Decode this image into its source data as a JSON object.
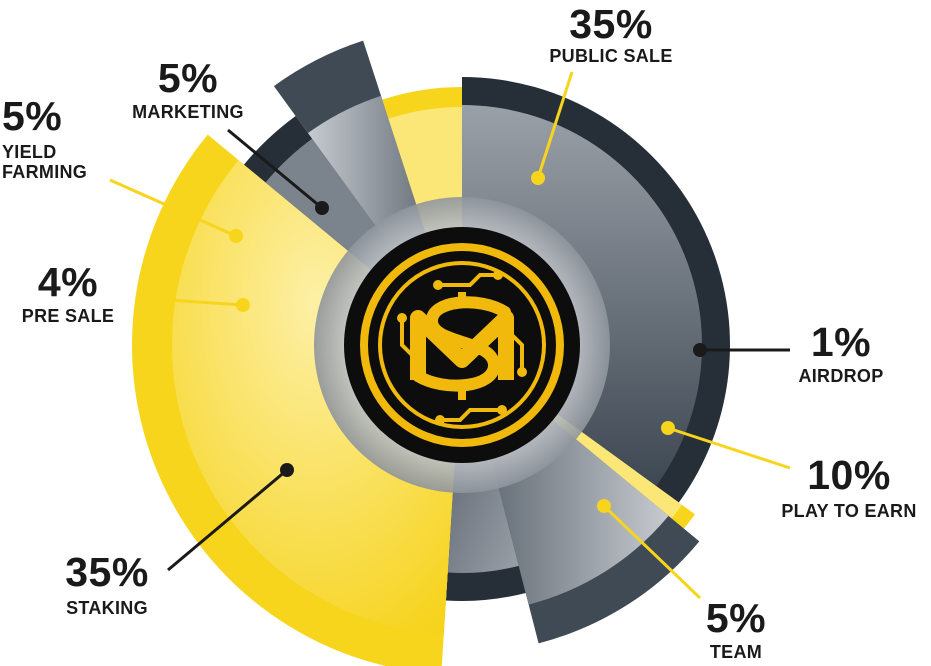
{
  "chart_data": {
    "type": "pie",
    "style": "radial donut with slices of varying radius",
    "center_logo": "gold coin with interlocking M and S letters (logo)",
    "colors": {
      "yellow": "#f7d51d",
      "yellow_light": "#fbe777",
      "slate": "#3a4550",
      "slate_dark": "#262f38",
      "gray": "#9aa0a8",
      "gray_light": "#c9cdd2",
      "coin_black": "#0d0d0d",
      "coin_gold": "#f0b90b"
    },
    "slices": [
      {
        "pct_label": "35%",
        "name": "PUBLIC SALE",
        "value": 35,
        "color": "slate"
      },
      {
        "pct_label": "1%",
        "name": "AIRDROP",
        "value": 1,
        "color": "yellow"
      },
      {
        "pct_label": "10%",
        "name": "PLAY TO EARN",
        "value": 10,
        "color": "gray"
      },
      {
        "pct_label": "5%",
        "name": "TEAM",
        "value": 5,
        "color": "slate"
      },
      {
        "pct_label": "35%",
        "name": "STAKING",
        "value": 35,
        "color": "yellow"
      },
      {
        "pct_label": "4%",
        "name": "PRE SALE",
        "value": 4,
        "color": "slate"
      },
      {
        "pct_label": "5%",
        "name": "YIELD FARMING",
        "name_lines": [
          "YIELD",
          "FARMING"
        ],
        "value": 5,
        "color": "gray"
      },
      {
        "pct_label": "5%",
        "name": "MARKETING",
        "value": 5,
        "color": "yellow"
      }
    ]
  }
}
